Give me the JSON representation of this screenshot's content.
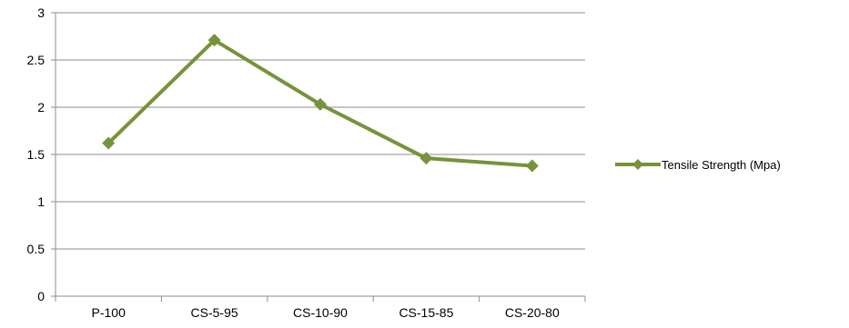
{
  "chart_data": {
    "type": "line",
    "title": "",
    "xlabel": "",
    "ylabel": "",
    "categories": [
      "P-100",
      "CS-5-95",
      "CS-10-90",
      "CS-15-85",
      "CS-20-80"
    ],
    "series": [
      {
        "name": "Tensile Strength (Mpa)",
        "values": [
          1.62,
          2.71,
          2.03,
          1.46,
          1.38
        ],
        "color": "#77933c",
        "marker": "diamond"
      }
    ],
    "ylim": [
      0,
      3
    ],
    "yticks": [
      "0",
      "0.5",
      "1",
      "1.5",
      "2",
      "2.5",
      "3"
    ],
    "ytick_values": [
      0,
      0.5,
      1,
      1.5,
      2,
      2.5,
      3
    ],
    "grid": "horizontal",
    "legend_position": "right",
    "colors": {
      "gridline": "#8c8c8c",
      "axis": "#8c8c8c"
    }
  }
}
